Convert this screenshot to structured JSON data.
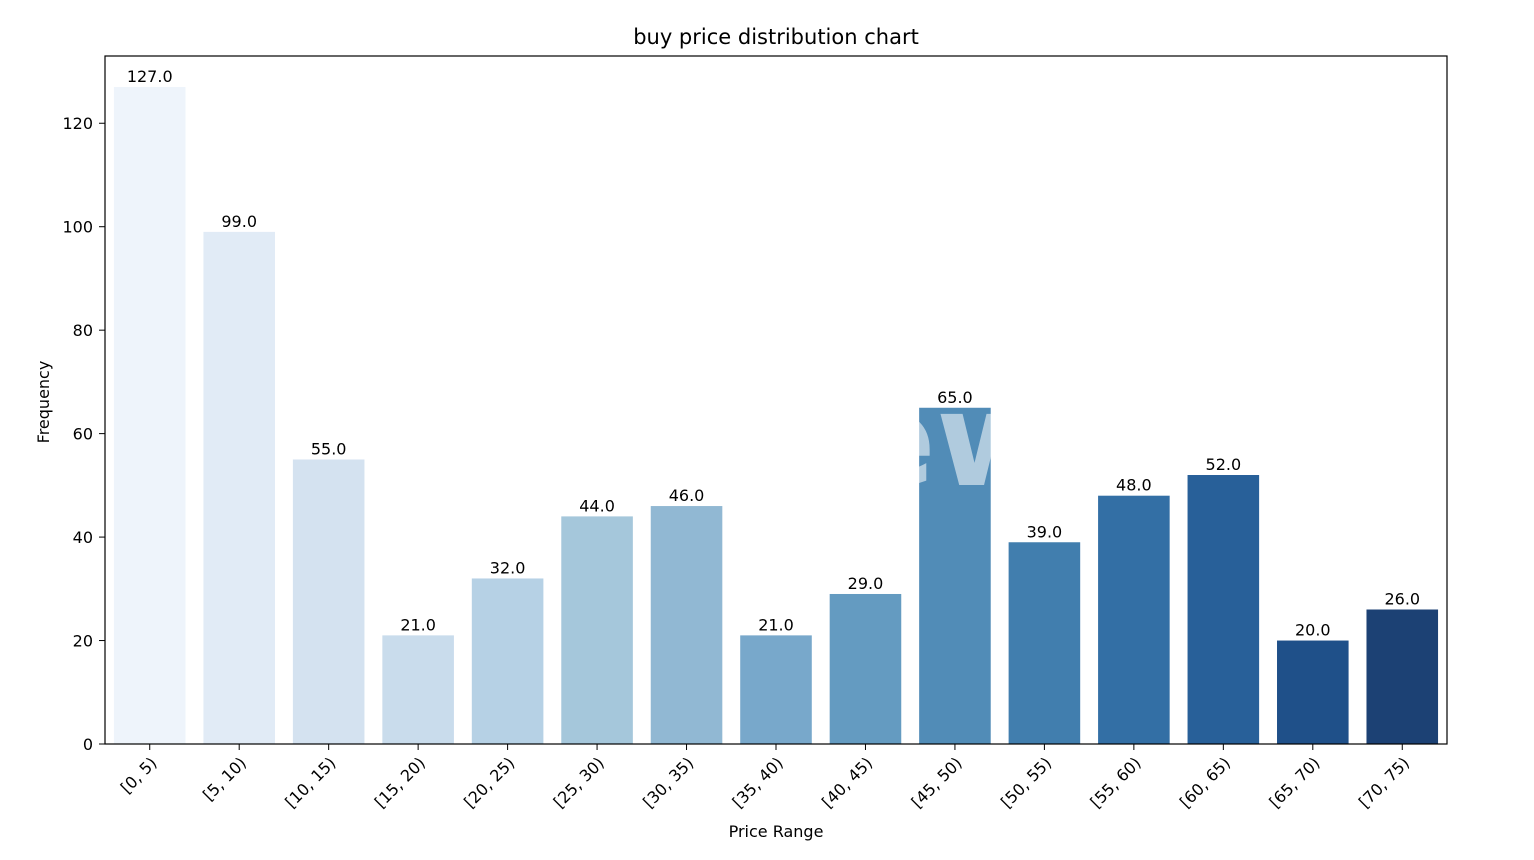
{
  "chart_data": {
    "type": "bar",
    "title": "buy price distribution chart",
    "xlabel": "Price Range",
    "ylabel": "Frequency",
    "categories": [
      "[0, 5)",
      "[5, 10)",
      "[10, 15)",
      "[15, 20)",
      "[20, 25)",
      "[25, 30)",
      "[30, 35)",
      "[35, 40)",
      "[40, 45)",
      "[45, 50)",
      "[50, 55)",
      "[55, 60)",
      "[60, 65)",
      "[65, 70)",
      "[70, 75)"
    ],
    "values": [
      127,
      99,
      55,
      21,
      32,
      44,
      46,
      21,
      29,
      65,
      39,
      48,
      52,
      20,
      26
    ],
    "data_labels": [
      "127.0",
      "99.0",
      "55.0",
      "21.0",
      "32.0",
      "44.0",
      "46.0",
      "21.0",
      "29.0",
      "65.0",
      "39.0",
      "48.0",
      "52.0",
      "20.0",
      "26.0"
    ],
    "colors": [
      "#eef4fb",
      "#e1ebf6",
      "#d4e2f0",
      "#c9dcec",
      "#b6d1e5",
      "#a5c7db",
      "#91b8d3",
      "#78a8cb",
      "#649bc1",
      "#518cb7",
      "#417eae",
      "#336fa5",
      "#286099",
      "#1f5089",
      "#1c4174"
    ],
    "ylim": [
      0,
      133
    ],
    "yticks": [
      0,
      20,
      40,
      60,
      80,
      100,
      120
    ],
    "ytick_labels": [
      "0",
      "20",
      "40",
      "60",
      "80",
      "100",
      "120"
    ],
    "grid": false,
    "legend": "none"
  },
  "watermark": {
    "text": "PANews",
    "icon": "panews-logo-icon"
  }
}
